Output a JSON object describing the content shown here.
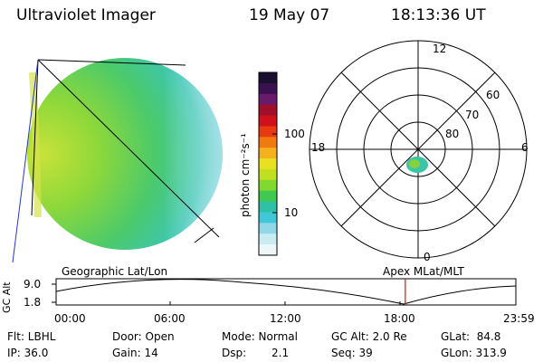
{
  "header": {
    "instrument": "Ultraviolet Imager",
    "date": "19 May 07",
    "time": "18:13:36 UT"
  },
  "colorbar": {
    "unit_label": "photon cm⁻²s⁻¹",
    "ticks": [
      "100",
      "10"
    ],
    "colors": [
      "#1a0f2e",
      "#3a1050",
      "#6a1a6a",
      "#a0102a",
      "#d0101a",
      "#e83a10",
      "#f07a10",
      "#f5b020",
      "#e8e020",
      "#c0e020",
      "#80d830",
      "#40c850",
      "#30c0a8",
      "#40c8d8",
      "#90d8e8",
      "#c8ecf2",
      "#eef6f8"
    ]
  },
  "polar": {
    "mlt_labels": {
      "top": "12",
      "left": "18",
      "right": "6",
      "bottom": "0"
    },
    "lat_labels": [
      "60",
      "70",
      "80"
    ]
  },
  "timeline": {
    "left_caption": "Geographic Lat/Lon",
    "right_caption": "Apex MLat/MLT",
    "y_axis_title": "GC Alt",
    "y_ticks": [
      "9.0",
      "1.8"
    ],
    "x_ticks": [
      "00:00",
      "06:00",
      "12:00",
      "18:00",
      "23:59"
    ],
    "current_time_fraction": 0.7595
  },
  "info": {
    "filter": "Flt: LBHL",
    "ip": "IP: 36.0",
    "door": "Door: Open",
    "gain": "Gain: 14",
    "mode": "Mode: Normal",
    "dsp_label": "Dsp:",
    "dsp_value": "2.1",
    "gc_alt": "GC Alt: 2.0 Re",
    "seq": "Seq: 39",
    "glat": "GLat:  84.8",
    "glon": "GLon: 313.9"
  }
}
